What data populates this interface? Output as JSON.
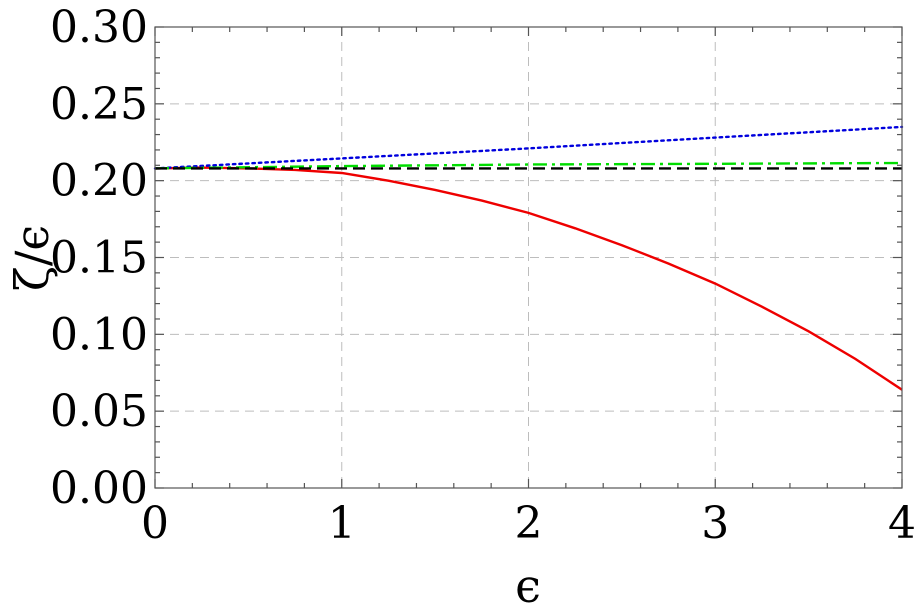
{
  "chart_data": {
    "type": "line",
    "xlabel": "ϵ",
    "ylabel": "ζ/ϵ",
    "xlim": [
      0,
      4
    ],
    "ylim": [
      0,
      0.3
    ],
    "xticks": [
      0,
      1,
      2,
      3,
      4
    ],
    "xtick_labels": [
      "0",
      "1",
      "2",
      "3",
      "4"
    ],
    "yticks": [
      0,
      0.05,
      0.1,
      0.15,
      0.2,
      0.25,
      0.3
    ],
    "ytick_labels": [
      "0.00",
      "0.05",
      "0.10",
      "0.15",
      "0.20",
      "0.25",
      "0.30"
    ],
    "grid": true,
    "legend": "none",
    "series": [
      {
        "color": "#ee0000",
        "style": "solid",
        "x": [
          0,
          0.25,
          0.5,
          0.75,
          1,
          1.25,
          1.5,
          1.75,
          2,
          2.25,
          2.5,
          2.75,
          3,
          3.25,
          3.5,
          3.75,
          4
        ],
        "y": [
          0.208,
          0.2085,
          0.208,
          0.207,
          0.205,
          0.2,
          0.194,
          0.187,
          0.179,
          0.169,
          0.158,
          0.146,
          0.133,
          0.118,
          0.102,
          0.084,
          0.064
        ]
      },
      {
        "color": "#0000dd",
        "style": "dotted",
        "x": [
          0,
          1,
          2,
          3,
          4
        ],
        "y": [
          0.208,
          0.2145,
          0.221,
          0.228,
          0.235
        ]
      },
      {
        "color": "#00dd00",
        "style": "dashdot",
        "x": [
          0,
          1,
          2,
          3,
          4
        ],
        "y": [
          0.208,
          0.2095,
          0.2105,
          0.211,
          0.2115
        ]
      },
      {
        "color": "#000000",
        "style": "dashed",
        "x": [
          0,
          4
        ],
        "y": [
          0.208,
          0.208
        ]
      }
    ]
  }
}
